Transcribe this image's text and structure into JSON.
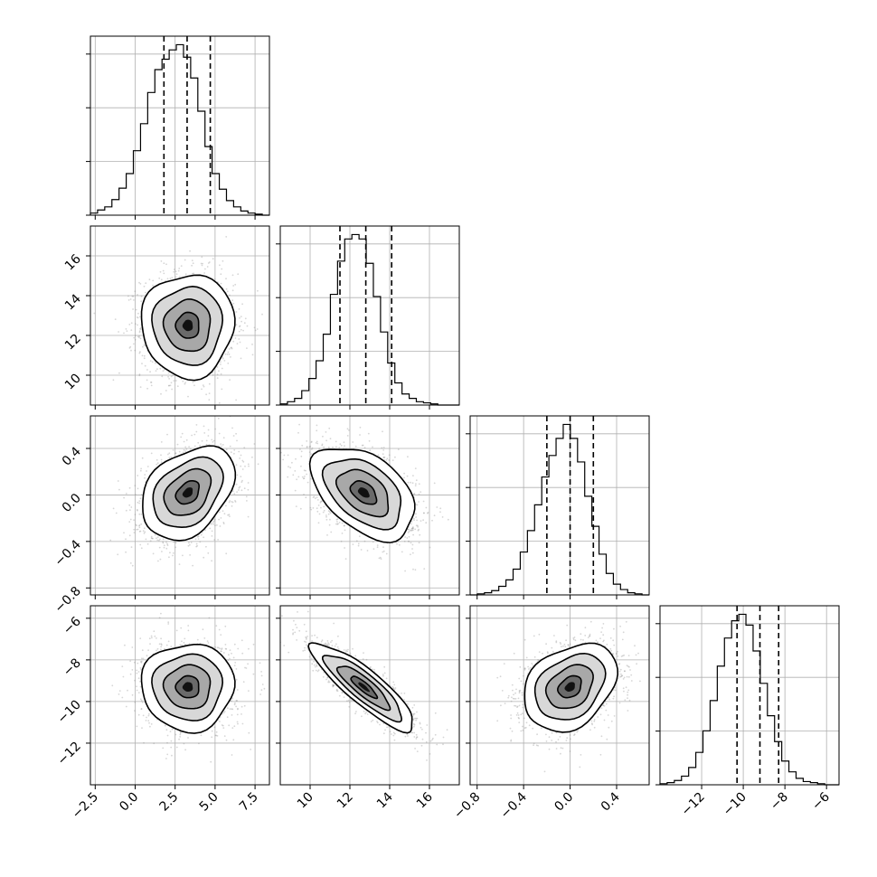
{
  "chart_data": {
    "type": "corner",
    "title": "",
    "parameters": [
      {
        "index": 0,
        "hist_range": [
          -2.8,
          8.4
        ],
        "quantiles": [
          1.8,
          3.25,
          4.7
        ],
        "tick_labels": [
          "−2.5",
          "0.0",
          "2.5",
          "5.0",
          "7.5"
        ],
        "tick_values": [
          -2.5,
          0,
          2.5,
          5,
          7.5
        ],
        "hist_counts": [
          2,
          5,
          8,
          15,
          26,
          40,
          62,
          88,
          118,
          140,
          150,
          159,
          164,
          152,
          132,
          100,
          66,
          40,
          25,
          14,
          8,
          4,
          2,
          1,
          0
        ]
      },
      {
        "index": 1,
        "hist_range": [
          8.5,
          17.5
        ],
        "quantiles": [
          11.5,
          12.8,
          14.1
        ],
        "tick_labels": [
          "10",
          "12",
          "14",
          "16"
        ],
        "tick_values": [
          10,
          12,
          14,
          16
        ],
        "hist_counts": [
          1,
          3,
          6,
          13,
          24,
          40,
          64,
          100,
          130,
          150,
          154,
          150,
          128,
          98,
          66,
          38,
          20,
          10,
          6,
          3,
          2,
          1,
          0,
          0,
          0
        ]
      },
      {
        "index": 2,
        "hist_range": [
          -0.86,
          0.68
        ],
        "quantiles": [
          -0.2,
          0.0,
          0.2
        ],
        "tick_labels": [
          "−0.8",
          "−0.4",
          "0.0",
          "0.4"
        ],
        "tick_values": [
          -0.8,
          -0.4,
          0.0,
          0.4
        ],
        "hist_counts": [
          0,
          1,
          2,
          4,
          8,
          14,
          24,
          40,
          60,
          84,
          110,
          130,
          146,
          159,
          146,
          124,
          92,
          64,
          38,
          20,
          10,
          5,
          2,
          1,
          0
        ]
      },
      {
        "index": 3,
        "hist_range": [
          -14.0,
          -5.4
        ],
        "quantiles": [
          -10.3,
          -9.2,
          -8.3
        ],
        "tick_labels": [
          "−12",
          "−10",
          "−8",
          "−6"
        ],
        "tick_values": [
          -12,
          -10,
          -8,
          -6
        ],
        "hist_counts": [
          1,
          2,
          4,
          8,
          16,
          30,
          50,
          78,
          110,
          136,
          152,
          158,
          148,
          124,
          94,
          64,
          40,
          22,
          12,
          6,
          3,
          2,
          1,
          0,
          0
        ]
      }
    ],
    "scatter_panels": [
      {
        "x_param": 0,
        "y_param": 1,
        "center": [
          3.3,
          12.5
        ],
        "std": [
          1.45,
          1.3
        ],
        "corr": 0.0
      },
      {
        "x_param": 0,
        "y_param": 2,
        "center": [
          3.3,
          0.02
        ],
        "std": [
          1.45,
          0.2
        ],
        "corr": 0.35
      },
      {
        "x_param": 1,
        "y_param": 2,
        "center": [
          12.7,
          0.02
        ],
        "std": [
          1.3,
          0.2
        ],
        "corr": -0.45
      },
      {
        "x_param": 0,
        "y_param": 3,
        "center": [
          3.3,
          -9.3
        ],
        "std": [
          1.45,
          1.05
        ],
        "corr": 0.0
      },
      {
        "x_param": 1,
        "y_param": 3,
        "center": [
          12.7,
          -9.3
        ],
        "std": [
          1.3,
          1.05
        ],
        "corr": -0.87
      },
      {
        "x_param": 2,
        "y_param": 3,
        "center": [
          0.0,
          -9.3
        ],
        "std": [
          0.2,
          1.05
        ],
        "corr": 0.3
      }
    ],
    "contour_levels_sigma": [
      0.5,
      1.0,
      1.5,
      2.0
    ],
    "grid": true,
    "scatter_point_count": 1800
  }
}
